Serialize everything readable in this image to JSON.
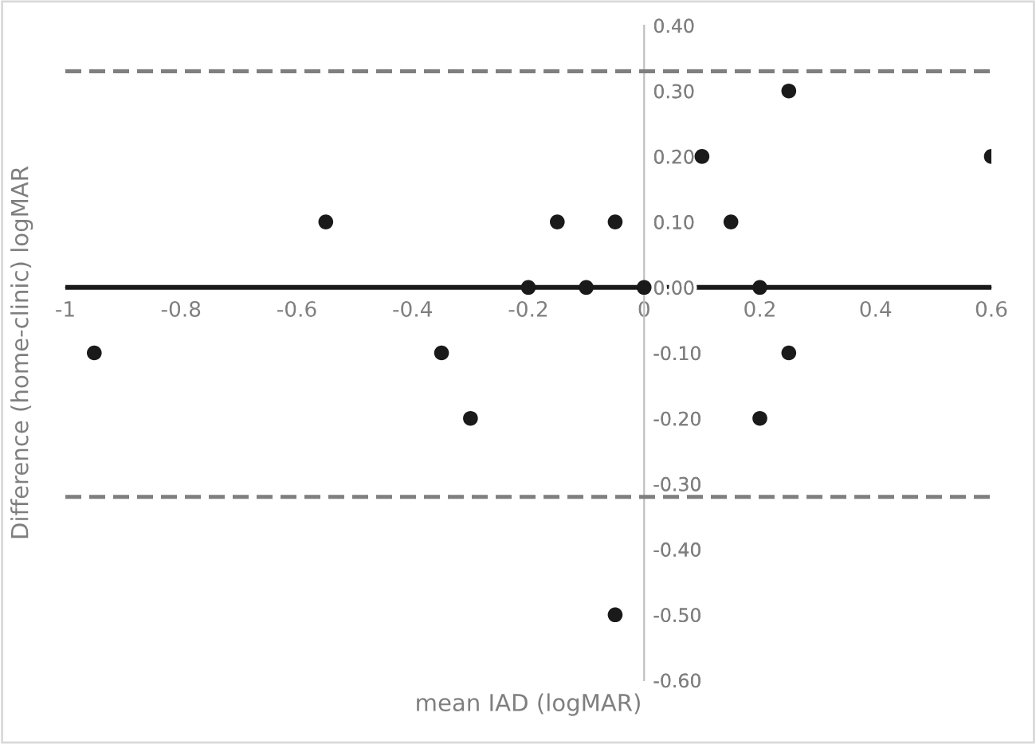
{
  "chart_data": {
    "type": "scatter",
    "xlabel": "mean IAD (logMAR)",
    "ylabel": "Difference (home-clinic) logMAR",
    "x": [
      -0.95,
      -0.55,
      -0.35,
      -0.3,
      -0.2,
      -0.15,
      -0.1,
      -0.05,
      0,
      0.1,
      0.15,
      0.2,
      0.25,
      0.6,
      0.25,
      0.2,
      -0.05
    ],
    "series": [
      {
        "color": "#1a1a1a",
        "values": [
          -0.1,
          0.1,
          -0.1,
          -0.2,
          0,
          0.1,
          0,
          0.1,
          0,
          0.2,
          0.1,
          0,
          0.3,
          0.2,
          -0.1,
          -0.2,
          -0.5
        ]
      }
    ],
    "marker": "circle",
    "xlim": [
      -1,
      0.6
    ],
    "xticks": [
      -1,
      -0.8,
      -0.6,
      -0.4,
      -0.2,
      0,
      0.2,
      0.4,
      0.6
    ],
    "ylim": [
      -0.6,
      0.4
    ],
    "yticks": [
      {
        "value": -0.6,
        "label": "-0.60"
      },
      {
        "value": -0.5,
        "label": "-0.50"
      },
      {
        "value": -0.4,
        "label": "-0.40"
      },
      {
        "value": -0.3,
        "label": "-0.30"
      },
      {
        "value": -0.2,
        "label": "-0.20"
      },
      {
        "value": -0.1,
        "label": "-0.10"
      },
      {
        "value": 0,
        "label": "0.00"
      },
      {
        "value": 0.1,
        "label": "0.10"
      },
      {
        "value": 0.2,
        "label": "0.20"
      },
      {
        "value": 0.3,
        "label": "0.30"
      },
      {
        "value": 0.4,
        "label": "0.40"
      }
    ],
    "ref_lines": [
      {
        "axis": "y",
        "value": 0.33,
        "color": "#7f7f7f",
        "line_style": "dashed"
      },
      {
        "axis": "y",
        "value": -0.32,
        "color": "#7f7f7f",
        "line_style": "dashed"
      },
      {
        "axis": "y",
        "value": 0,
        "color": "#1a1a1a",
        "line_style": "solid"
      }
    ],
    "grid": false,
    "legend": false
  }
}
